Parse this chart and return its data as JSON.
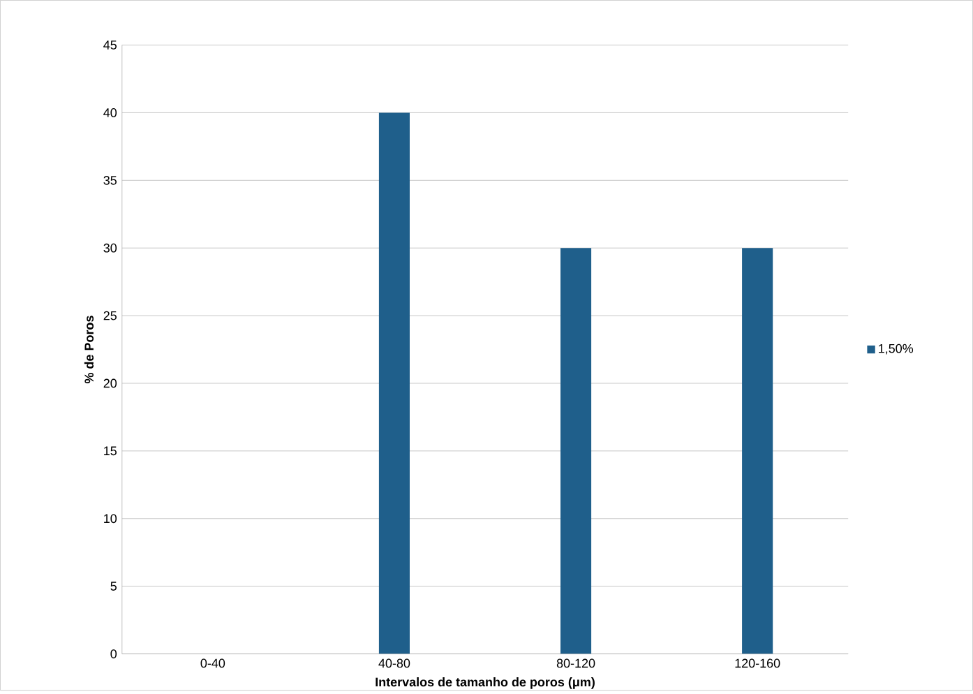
{
  "chart_data": {
    "type": "bar",
    "xlabel": "Intervalos de tamanho de poros (μm)",
    "ylabel": "% de Poros",
    "categories": [
      "0-40",
      "40-80",
      "80-120",
      "120-160"
    ],
    "series": [
      {
        "name": "1,50%",
        "color": "#1f5f8b",
        "values": [
          0,
          40,
          30,
          30
        ]
      }
    ],
    "ylim": [
      0,
      45
    ],
    "yticks": [
      0,
      5,
      10,
      15,
      20,
      25,
      30,
      35,
      40,
      45
    ],
    "grid": "y",
    "legend": "right"
  }
}
